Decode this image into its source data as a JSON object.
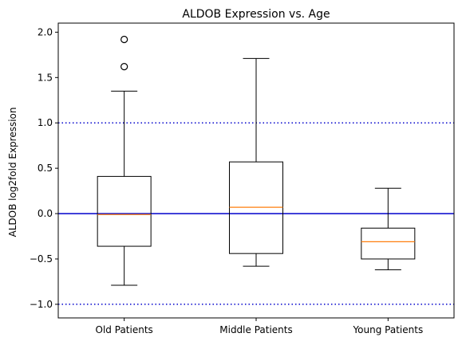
{
  "chart_data": {
    "type": "box",
    "title": "ALDOB Expression vs. Age",
    "xlabel": "",
    "ylabel": "ALDOB log2fold Expression",
    "categories": [
      "Old Patients",
      "Middle Patients",
      "Young Patients"
    ],
    "boxes": [
      {
        "category": "Old Patients",
        "whisker_low": -0.79,
        "q1": -0.36,
        "median": -0.01,
        "q3": 0.41,
        "whisker_high": 1.35,
        "outliers": [
          1.62,
          1.92
        ]
      },
      {
        "category": "Middle Patients",
        "whisker_low": -0.58,
        "q1": -0.44,
        "median": 0.07,
        "q3": 0.57,
        "whisker_high": 1.71,
        "outliers": []
      },
      {
        "category": "Young Patients",
        "whisker_low": -0.62,
        "q1": -0.5,
        "median": -0.31,
        "q3": -0.16,
        "whisker_high": 0.28,
        "outliers": []
      }
    ],
    "ylim": [
      -1.15,
      2.1
    ],
    "yticks": [
      -1.0,
      -0.5,
      0.0,
      0.5,
      1.0,
      1.5,
      2.0
    ],
    "ytick_labels": [
      "−1.0",
      "−0.5",
      "0.0",
      "0.5",
      "1.0",
      "1.5",
      "2.0"
    ],
    "reference_lines": [
      {
        "y": 0.0,
        "style": "solid",
        "color": "#0000cc"
      },
      {
        "y": 1.0,
        "style": "dotted",
        "color": "#0000cc"
      },
      {
        "y": -1.0,
        "style": "dotted",
        "color": "#0000cc"
      }
    ],
    "colors": {
      "box": "#000000",
      "median": "#ff7f0e",
      "reference": "#0000cc"
    },
    "grid": false,
    "legend": "none"
  }
}
